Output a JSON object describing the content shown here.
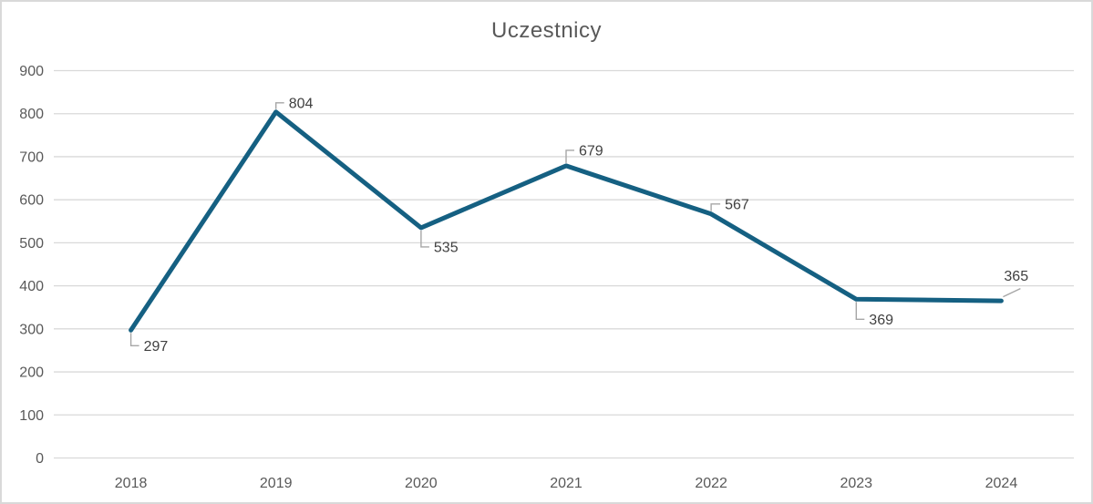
{
  "chart": {
    "title": "Uczestnicy"
  },
  "chart_data": {
    "type": "line",
    "title": "Uczestnicy",
    "xlabel": "",
    "ylabel": "",
    "categories": [
      "2018",
      "2019",
      "2020",
      "2021",
      "2022",
      "2023",
      "2024"
    ],
    "series": [
      {
        "name": "Uczestnicy",
        "values": [
          297,
          804,
          535,
          679,
          567,
          369,
          365
        ]
      }
    ],
    "data_labels": [
      "297",
      "804",
      "535",
      "679",
      "567",
      "369",
      "365"
    ],
    "ylim": [
      0,
      900
    ],
    "ytick_step": 100,
    "yticks": [
      0,
      100,
      200,
      300,
      400,
      500,
      600,
      700,
      800,
      900
    ],
    "grid": true,
    "legend": "none",
    "colors": {
      "line": "#156082",
      "gridline": "#D9D9D9",
      "tick_label": "#595959",
      "data_label": "#404040",
      "leader_line": "#A6A6A6",
      "title": "#595959",
      "background": "#FFFFFF",
      "border": "#D9D9D9"
    }
  }
}
